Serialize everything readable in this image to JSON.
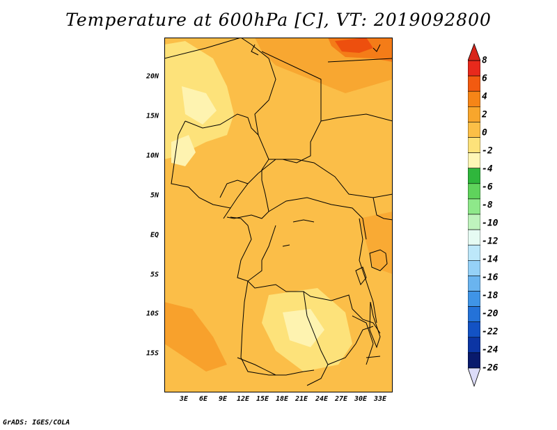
{
  "title": "Temperature at 600hPa [C], VT: 2019092800",
  "credit": "GrADS: IGES/COLA",
  "map": {
    "region": "Central Africa",
    "field": "temperature",
    "level": "600hPa",
    "units": "C",
    "valid_time": "2019092800",
    "lat_labels": [
      "20N",
      "15N",
      "10N",
      "5N",
      "EQ",
      "5S",
      "10S",
      "15S"
    ],
    "lon_labels": [
      "3E",
      "6E",
      "9E",
      "12E",
      "15E",
      "18E",
      "21E",
      "24E",
      "27E",
      "30E",
      "33E"
    ],
    "fill_colors": {
      "minus2_to_0": "#fde27a",
      "minus4_to_minus2": "#fef3b0",
      "0_to_2": "#fbbe48",
      "2_to_4": "#f8a12c",
      "4_to_6": "#f47c18",
      "6_to_8": "#ed4f0e",
      "border": "#000000"
    }
  },
  "colorbar": {
    "labels": [
      "8",
      "6",
      "4",
      "2",
      "0",
      "-2",
      "-4",
      "-6",
      "-8",
      "-10",
      "-12",
      "-14",
      "-16",
      "-18",
      "-20",
      "-22",
      "-24",
      "-26"
    ],
    "colors": [
      "#e8291c",
      "#f25a10",
      "#f58517",
      "#f8a62c",
      "#fbbf47",
      "#fde27a",
      "#fef6b6",
      "#2fb63c",
      "#5fd35c",
      "#8ee88a",
      "#bff3bd",
      "#e6fbf3",
      "#bde8fa",
      "#95d1f7",
      "#6ab4ef",
      "#3f94e6",
      "#2472d8",
      "#1352c4",
      "#0c35a4",
      "#091a6c"
    ],
    "over_color": "#d8251a",
    "under_color": "#dcdcf8"
  }
}
